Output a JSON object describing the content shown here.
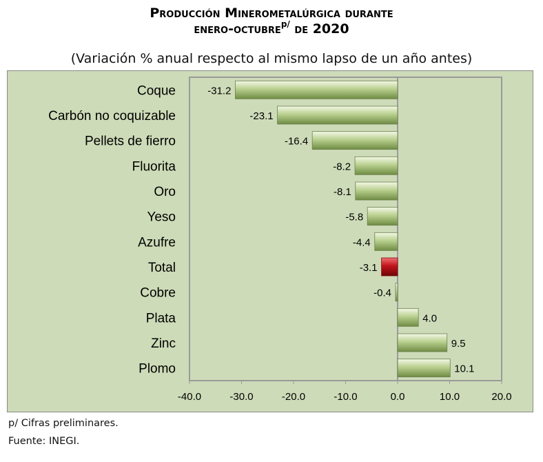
{
  "title": {
    "line1": "Producción Minerometalúrgica durante",
    "line2_main": "enero-octubre",
    "line2_sup": "p/",
    "line2_end": " de 2020"
  },
  "subtitle": "(Variación % anual respecto al mismo lapso de un año antes)",
  "footnote": "p/ Cifras preliminares.",
  "source": "Fuente: INEGI.",
  "colors": {
    "plot_bg": "#cddbb8",
    "bar_green": "#a8c47a",
    "bar_highlight_red": "#c0141a"
  },
  "chart_data": {
    "type": "bar",
    "orientation": "horizontal",
    "categories": [
      "Coque",
      "Carbón no coquizable",
      "Pellets de fierro",
      "Fluorita",
      "Oro",
      "Yeso",
      "Azufre",
      "Total",
      "Cobre",
      "Plata",
      "Zinc",
      "Plomo"
    ],
    "values": [
      -31.2,
      -23.1,
      -16.4,
      -8.2,
      -8.1,
      -5.8,
      -4.4,
      -3.1,
      -0.4,
      4.0,
      9.5,
      10.1
    ],
    "data_labels": [
      "-31.2",
      "-23.1",
      "-16.4",
      "-8.2",
      "-8.1",
      "-5.8",
      "-4.4",
      "-3.1",
      "-0.4",
      "4.0",
      "9.5",
      "10.1"
    ],
    "highlight": "Total",
    "xlim": [
      -40,
      20
    ],
    "xticks": [
      -40,
      -30,
      -20,
      -10,
      0,
      10,
      20
    ],
    "xtick_labels": [
      "-40.0",
      "-30.0",
      "-20.0",
      "-10.0",
      "0.0",
      "10.0",
      "20.0"
    ],
    "grid": false,
    "legend": "none"
  }
}
